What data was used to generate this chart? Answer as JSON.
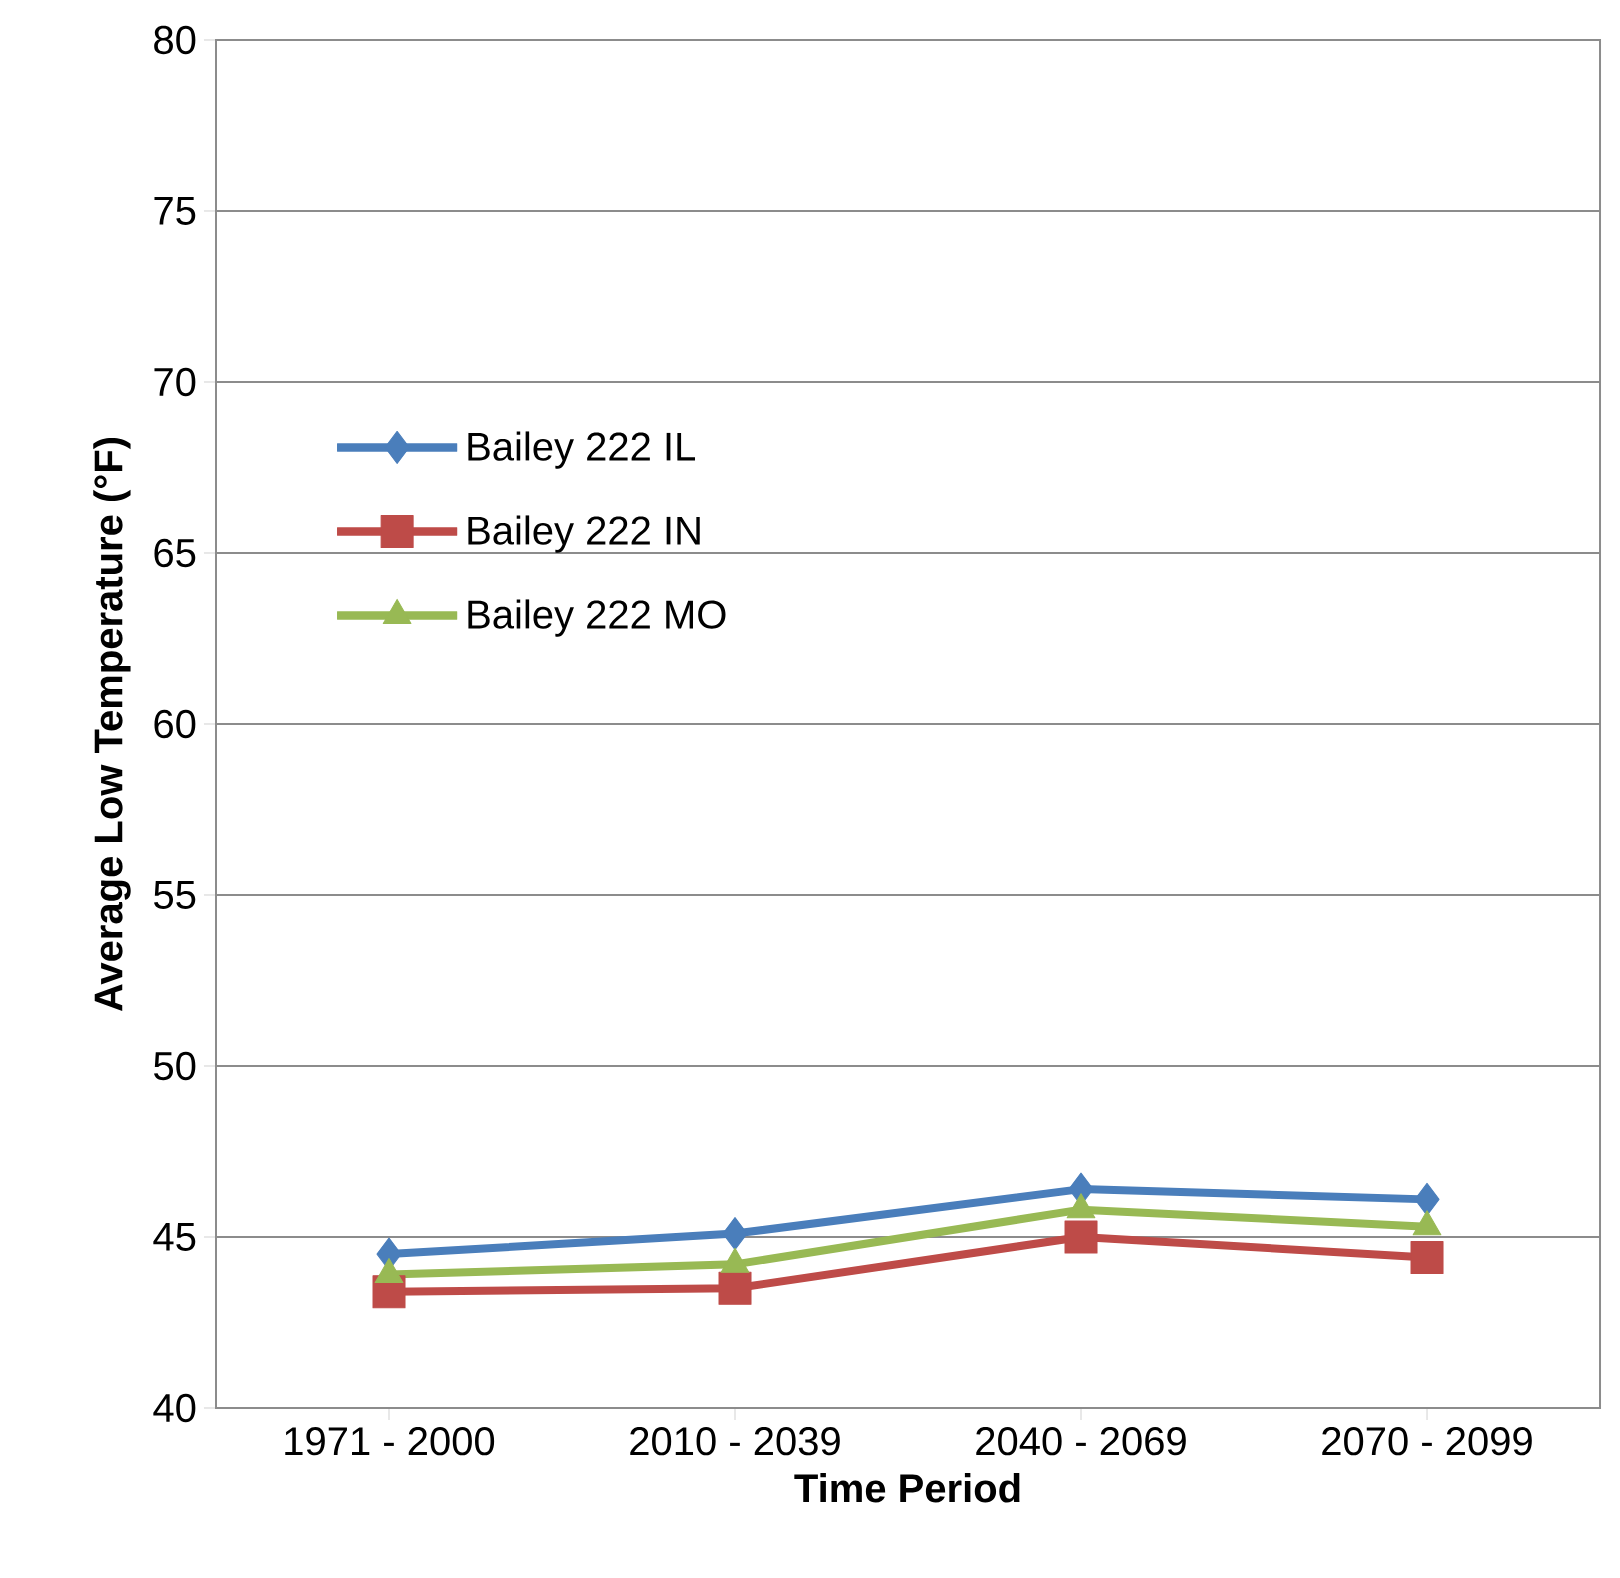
{
  "chart_data": {
    "type": "line",
    "xlabel": "Time Period",
    "ylabel": "Average Low Temperature (°F)",
    "categories": [
      "1971 - 2000",
      "2010 - 2039",
      "2040 - 2069",
      "2070 - 2099"
    ],
    "series": [
      {
        "name": "Bailey 222 IL",
        "color": "#4a7ebb",
        "marker": "diamond",
        "values": [
          44.5,
          45.1,
          46.4,
          46.1
        ]
      },
      {
        "name": "Bailey 222 IN",
        "color": "#be4b48",
        "marker": "square",
        "values": [
          43.4,
          43.5,
          45.0,
          44.4
        ]
      },
      {
        "name": "Bailey 222 MO",
        "color": "#98b954",
        "marker": "triangle",
        "values": [
          43.9,
          44.2,
          45.8,
          45.3
        ]
      }
    ],
    "ylim": [
      40,
      80
    ],
    "yticks": [
      40,
      45,
      50,
      55,
      60,
      65,
      70,
      75,
      80
    ],
    "grid": "y",
    "legend": "left",
    "line_style": "solid"
  }
}
